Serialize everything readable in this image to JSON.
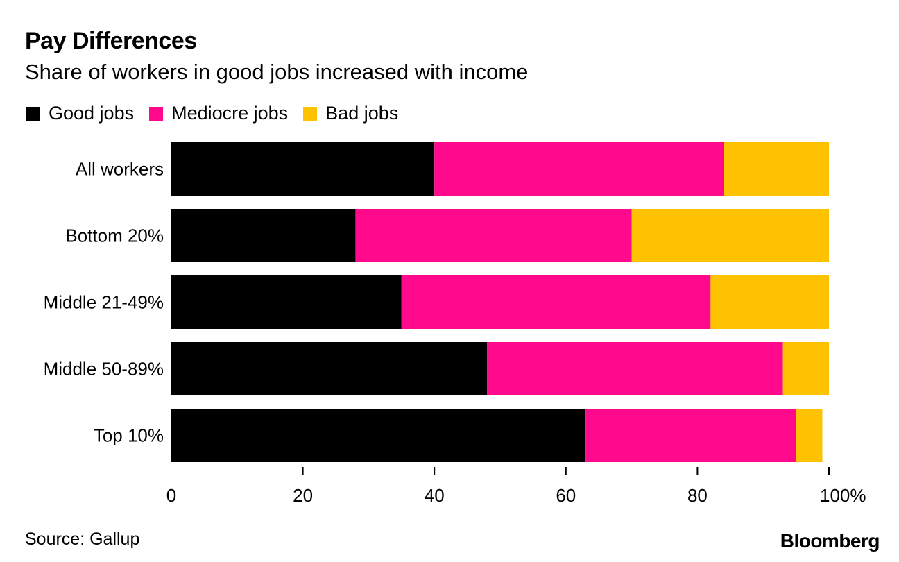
{
  "chart_data": {
    "type": "bar",
    "orientation": "horizontal",
    "stacked": true,
    "title": "Pay Differences",
    "subtitle": "Share of workers in good jobs increased with income",
    "categories": [
      "All workers",
      "Bottom 20%",
      "Middle 21-49%",
      "Middle 50-89%",
      "Top 10%"
    ],
    "series": [
      {
        "name": "Good jobs",
        "color": "#000000",
        "values": [
          40,
          28,
          35,
          48,
          63
        ]
      },
      {
        "name": "Mediocre jobs",
        "color": "#ff0a8c",
        "values": [
          44,
          42,
          47,
          45,
          32
        ]
      },
      {
        "name": "Bad jobs",
        "color": "#ffc200",
        "values": [
          16,
          30,
          18,
          7,
          4
        ]
      }
    ],
    "xlim": [
      0,
      100
    ],
    "xticks": [
      0,
      20,
      40,
      60,
      80,
      100
    ],
    "xtick_labels": [
      "0",
      "20",
      "40",
      "60",
      "80",
      "100%"
    ],
    "legend_position": "top-left",
    "grid": false
  },
  "source": "Source: Gallup",
  "brand": "Bloomberg"
}
